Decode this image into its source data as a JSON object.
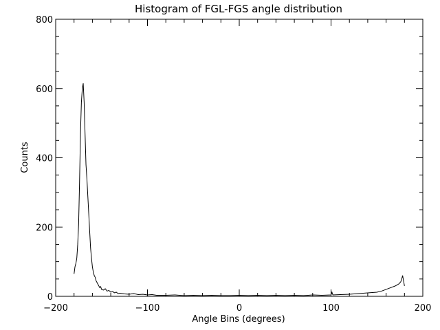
{
  "chart_data": {
    "type": "line",
    "title": "Histogram of FGL-FGS angle distribution",
    "xlabel": "Angle Bins (degrees)",
    "ylabel": "Counts",
    "xlim": [
      -200,
      200
    ],
    "ylim": [
      0,
      800
    ],
    "x_ticks": [
      -200,
      -100,
      0,
      100,
      200
    ],
    "x_tick_labels": [
      "−200",
      "−100",
      "0",
      "100",
      "200"
    ],
    "y_ticks": [
      0,
      200,
      400,
      600,
      800
    ],
    "y_tick_labels": [
      "0",
      "200",
      "400",
      "600",
      "800"
    ],
    "grid": false,
    "series": [
      {
        "name": "FGL-FGS angle",
        "x": [
          -180,
          -179,
          -178,
          -177,
          -176,
          -175,
          -174,
          -173,
          -172,
          -171,
          -170,
          -169,
          -168,
          -167,
          -166,
          -165,
          -164,
          -163,
          -162,
          -161,
          -160,
          -159,
          -158,
          -157,
          -156,
          -155,
          -154,
          -153,
          -152,
          -151,
          -150,
          -148,
          -146,
          -144,
          -142,
          -140,
          -138,
          -136,
          -134,
          -132,
          -130,
          -125,
          -120,
          -115,
          -110,
          -105,
          -100,
          -95,
          -90,
          -80,
          -70,
          -60,
          -50,
          -40,
          -30,
          -20,
          -10,
          0,
          10,
          20,
          30,
          40,
          50,
          60,
          70,
          80,
          90,
          100,
          101,
          102,
          110,
          120,
          130,
          140,
          150,
          155,
          160,
          165,
          170,
          172,
          174,
          176,
          177,
          178,
          179,
          180
        ],
        "y": [
          65,
          85,
          95,
          110,
          150,
          210,
          330,
          470,
          560,
          600,
          615,
          560,
          470,
          380,
          340,
          290,
          240,
          190,
          140,
          110,
          85,
          70,
          60,
          55,
          45,
          40,
          35,
          30,
          25,
          28,
          20,
          18,
          22,
          15,
          17,
          12,
          14,
          10,
          12,
          8,
          9,
          7,
          6,
          8,
          5,
          6,
          4,
          5,
          3,
          3,
          4,
          2,
          3,
          2,
          3,
          2,
          2,
          3,
          2,
          3,
          2,
          3,
          2,
          3,
          2,
          4,
          3,
          4,
          12,
          4,
          5,
          6,
          8,
          10,
          12,
          15,
          20,
          25,
          30,
          33,
          36,
          42,
          50,
          60,
          45,
          30
        ]
      }
    ]
  }
}
